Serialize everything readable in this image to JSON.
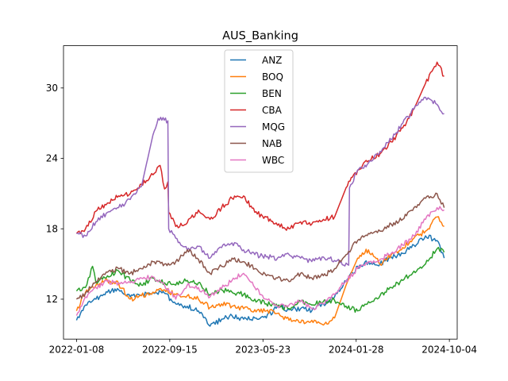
{
  "chart_data": {
    "type": "line",
    "title": "AUS_Banking",
    "xlabel": "",
    "ylabel": "",
    "x_range": [
      "2021-12-04",
      "2024-10-25"
    ],
    "ylim": [
      8.6,
      33.6
    ],
    "x_ticks": [
      "2022-01-08",
      "2022-09-15",
      "2023-05-23",
      "2024-01-28",
      "2024-10-04"
    ],
    "y_ticks": [
      12,
      18,
      24,
      30
    ],
    "grid": false,
    "legend_position": "top-center",
    "series": [
      {
        "name": "ANZ",
        "color": "#1f77b4",
        "points": [
          [
            "2022-01-08",
            10.2
          ],
          [
            "2022-02-01",
            11.5
          ],
          [
            "2022-03-01",
            12.0
          ],
          [
            "2022-04-01",
            12.6
          ],
          [
            "2022-05-01",
            12.8
          ],
          [
            "2022-06-01",
            12.2
          ],
          [
            "2022-07-01",
            12.3
          ],
          [
            "2022-08-01",
            12.6
          ],
          [
            "2022-09-01",
            12.5
          ],
          [
            "2022-10-01",
            11.6
          ],
          [
            "2022-11-01",
            11.4
          ],
          [
            "2022-12-01",
            11.0
          ],
          [
            "2023-01-01",
            9.7
          ],
          [
            "2023-02-01",
            10.3
          ],
          [
            "2023-03-01",
            10.6
          ],
          [
            "2023-04-01",
            10.3
          ],
          [
            "2023-05-01",
            10.4
          ],
          [
            "2023-06-01",
            10.4
          ],
          [
            "2023-07-01",
            11.4
          ],
          [
            "2023-08-01",
            11.1
          ],
          [
            "2023-09-01",
            11.2
          ],
          [
            "2023-10-01",
            11.0
          ],
          [
            "2023-11-01",
            11.6
          ],
          [
            "2023-12-01",
            12.2
          ],
          [
            "2024-01-01",
            13.5
          ],
          [
            "2024-02-01",
            14.8
          ],
          [
            "2024-03-01",
            15.2
          ],
          [
            "2024-04-01",
            15.0
          ],
          [
            "2024-05-01",
            15.6
          ],
          [
            "2024-06-01",
            15.9
          ],
          [
            "2024-07-01",
            16.6
          ],
          [
            "2024-08-01",
            17.4
          ],
          [
            "2024-09-01",
            17.0
          ],
          [
            "2024-09-20",
            15.5
          ]
        ]
      },
      {
        "name": "BOQ",
        "color": "#ff7f0e",
        "points": [
          [
            "2022-01-08",
            11.0
          ],
          [
            "2022-02-01",
            12.6
          ],
          [
            "2022-03-01",
            13.2
          ],
          [
            "2022-04-01",
            13.6
          ],
          [
            "2022-05-01",
            13.3
          ],
          [
            "2022-06-01",
            12.0
          ],
          [
            "2022-07-01",
            12.3
          ],
          [
            "2022-08-01",
            12.6
          ],
          [
            "2022-09-01",
            12.8
          ],
          [
            "2022-10-01",
            12.4
          ],
          [
            "2022-11-01",
            12.3
          ],
          [
            "2022-12-01",
            12.0
          ],
          [
            "2023-01-01",
            11.3
          ],
          [
            "2023-02-01",
            11.6
          ],
          [
            "2023-03-01",
            11.4
          ],
          [
            "2023-04-01",
            11.2
          ],
          [
            "2023-05-01",
            11.1
          ],
          [
            "2023-06-01",
            11.0
          ],
          [
            "2023-07-01",
            10.8
          ],
          [
            "2023-08-01",
            10.2
          ],
          [
            "2023-09-01",
            10.0
          ],
          [
            "2023-10-01",
            10.2
          ],
          [
            "2023-11-01",
            9.8
          ],
          [
            "2023-12-01",
            10.4
          ],
          [
            "2024-01-01",
            13.2
          ],
          [
            "2024-02-01",
            15.5
          ],
          [
            "2024-03-01",
            16.2
          ],
          [
            "2024-04-01",
            15.0
          ],
          [
            "2024-05-01",
            15.8
          ],
          [
            "2024-06-01",
            16.4
          ],
          [
            "2024-07-01",
            17.2
          ],
          [
            "2024-08-01",
            17.8
          ],
          [
            "2024-09-01",
            19.0
          ],
          [
            "2024-09-20",
            18.2
          ]
        ]
      },
      {
        "name": "BEN",
        "color": "#2ca02c",
        "points": [
          [
            "2022-01-08",
            12.7
          ],
          [
            "2022-02-01",
            13.0
          ],
          [
            "2022-02-20",
            14.8
          ],
          [
            "2022-03-01",
            13.4
          ],
          [
            "2022-04-01",
            14.0
          ],
          [
            "2022-05-01",
            14.4
          ],
          [
            "2022-06-01",
            13.6
          ],
          [
            "2022-07-01",
            13.2
          ],
          [
            "2022-08-01",
            13.8
          ],
          [
            "2022-09-01",
            13.4
          ],
          [
            "2022-10-01",
            13.2
          ],
          [
            "2022-11-01",
            13.6
          ],
          [
            "2022-12-01",
            13.4
          ],
          [
            "2023-01-01",
            12.4
          ],
          [
            "2023-02-01",
            12.8
          ],
          [
            "2023-03-01",
            12.6
          ],
          [
            "2023-04-01",
            12.4
          ],
          [
            "2023-05-01",
            12.0
          ],
          [
            "2023-06-01",
            11.6
          ],
          [
            "2023-07-01",
            11.4
          ],
          [
            "2023-08-01",
            11.2
          ],
          [
            "2023-09-01",
            11.8
          ],
          [
            "2023-10-01",
            11.5
          ],
          [
            "2023-11-01",
            11.8
          ],
          [
            "2023-12-01",
            11.9
          ],
          [
            "2024-01-01",
            11.4
          ],
          [
            "2024-02-01",
            11.0
          ],
          [
            "2024-03-01",
            11.8
          ],
          [
            "2024-04-01",
            12.3
          ],
          [
            "2024-05-01",
            13.0
          ],
          [
            "2024-06-01",
            13.6
          ],
          [
            "2024-07-01",
            14.4
          ],
          [
            "2024-08-01",
            15.0
          ],
          [
            "2024-09-01",
            16.3
          ],
          [
            "2024-09-20",
            16.0
          ]
        ]
      },
      {
        "name": "CBA",
        "color": "#d62728",
        "points": [
          [
            "2022-01-08",
            17.6
          ],
          [
            "2022-02-01",
            18.0
          ],
          [
            "2022-03-01",
            19.5
          ],
          [
            "2022-04-01",
            20.2
          ],
          [
            "2022-05-01",
            20.8
          ],
          [
            "2022-06-01",
            21.0
          ],
          [
            "2022-07-01",
            21.8
          ],
          [
            "2022-08-01",
            22.6
          ],
          [
            "2022-08-20",
            23.4
          ],
          [
            "2022-09-01",
            21.4
          ],
          [
            "2022-09-10",
            22.0
          ],
          [
            "2022-09-12",
            19.4
          ],
          [
            "2022-10-01",
            18.2
          ],
          [
            "2022-11-01",
            18.5
          ],
          [
            "2022-12-01",
            19.6
          ],
          [
            "2023-01-01",
            18.8
          ],
          [
            "2023-02-01",
            19.8
          ],
          [
            "2023-03-01",
            20.6
          ],
          [
            "2023-04-01",
            20.8
          ],
          [
            "2023-05-01",
            19.4
          ],
          [
            "2023-06-01",
            19.0
          ],
          [
            "2023-07-01",
            18.3
          ],
          [
            "2023-08-01",
            18.0
          ],
          [
            "2023-09-01",
            18.6
          ],
          [
            "2023-10-01",
            18.4
          ],
          [
            "2023-11-01",
            18.8
          ],
          [
            "2023-12-01",
            19.0
          ],
          [
            "2024-01-01",
            21.5
          ],
          [
            "2024-02-01",
            23.0
          ],
          [
            "2024-03-01",
            23.8
          ],
          [
            "2024-04-01",
            24.4
          ],
          [
            "2024-05-01",
            25.4
          ],
          [
            "2024-06-01",
            26.6
          ],
          [
            "2024-07-01",
            28.2
          ],
          [
            "2024-08-01",
            30.4
          ],
          [
            "2024-09-01",
            32.2
          ],
          [
            "2024-09-20",
            31.0
          ]
        ]
      },
      {
        "name": "MQG",
        "color": "#9467bd",
        "points": [
          [
            "2022-01-08",
            17.6
          ],
          [
            "2022-02-01",
            17.4
          ],
          [
            "2022-03-01",
            18.6
          ],
          [
            "2022-04-01",
            19.4
          ],
          [
            "2022-05-01",
            19.8
          ],
          [
            "2022-06-01",
            20.5
          ],
          [
            "2022-07-01",
            21.6
          ],
          [
            "2022-08-01",
            26.0
          ],
          [
            "2022-08-15",
            27.4
          ],
          [
            "2022-09-10",
            27.2
          ],
          [
            "2022-09-12",
            18.0
          ],
          [
            "2022-10-01",
            17.2
          ],
          [
            "2022-11-01",
            16.2
          ],
          [
            "2022-12-01",
            16.5
          ],
          [
            "2023-01-01",
            15.5
          ],
          [
            "2023-02-01",
            16.4
          ],
          [
            "2023-03-01",
            16.8
          ],
          [
            "2023-04-01",
            16.2
          ],
          [
            "2023-05-01",
            15.8
          ],
          [
            "2023-06-01",
            15.6
          ],
          [
            "2023-07-01",
            15.5
          ],
          [
            "2023-08-01",
            15.8
          ],
          [
            "2023-09-01",
            15.5
          ],
          [
            "2023-10-01",
            15.2
          ],
          [
            "2023-11-01",
            15.6
          ],
          [
            "2023-12-01",
            15.3
          ],
          [
            "2024-01-08",
            14.9
          ],
          [
            "2024-01-10",
            21.5
          ],
          [
            "2024-02-01",
            23.0
          ],
          [
            "2024-03-01",
            23.6
          ],
          [
            "2024-04-01",
            24.6
          ],
          [
            "2024-05-01",
            25.6
          ],
          [
            "2024-06-01",
            27.0
          ],
          [
            "2024-07-01",
            28.2
          ],
          [
            "2024-08-01",
            29.2
          ],
          [
            "2024-09-01",
            28.6
          ],
          [
            "2024-09-20",
            27.8
          ]
        ]
      },
      {
        "name": "NAB",
        "color": "#8c564b",
        "points": [
          [
            "2022-01-08",
            12.0
          ],
          [
            "2022-02-01",
            12.5
          ],
          [
            "2022-03-01",
            13.5
          ],
          [
            "2022-04-01",
            14.3
          ],
          [
            "2022-05-01",
            14.6
          ],
          [
            "2022-06-01",
            14.2
          ],
          [
            "2022-07-01",
            14.6
          ],
          [
            "2022-08-01",
            15.2
          ],
          [
            "2022-09-01",
            15.0
          ],
          [
            "2022-10-01",
            15.2
          ],
          [
            "2022-11-01",
            16.2
          ],
          [
            "2022-12-01",
            15.4
          ],
          [
            "2023-01-01",
            14.2
          ],
          [
            "2023-02-01",
            14.8
          ],
          [
            "2023-03-01",
            15.5
          ],
          [
            "2023-04-01",
            15.2
          ],
          [
            "2023-05-01",
            14.6
          ],
          [
            "2023-06-01",
            14.0
          ],
          [
            "2023-07-01",
            13.8
          ],
          [
            "2023-08-01",
            13.5
          ],
          [
            "2023-09-01",
            14.2
          ],
          [
            "2023-10-01",
            13.8
          ],
          [
            "2023-11-01",
            14.0
          ],
          [
            "2023-12-01",
            14.6
          ],
          [
            "2024-01-01",
            15.8
          ],
          [
            "2024-02-01",
            17.0
          ],
          [
            "2024-03-01",
            17.6
          ],
          [
            "2024-04-01",
            17.8
          ],
          [
            "2024-05-01",
            18.4
          ],
          [
            "2024-06-01",
            18.8
          ],
          [
            "2024-07-01",
            19.8
          ],
          [
            "2024-08-01",
            20.6
          ],
          [
            "2024-09-01",
            21.0
          ],
          [
            "2024-09-20",
            19.8
          ]
        ]
      },
      {
        "name": "WBC",
        "color": "#e377c2",
        "points": [
          [
            "2022-01-08",
            10.6
          ],
          [
            "2022-02-01",
            12.2
          ],
          [
            "2022-03-01",
            13.0
          ],
          [
            "2022-04-01",
            13.5
          ],
          [
            "2022-05-01",
            13.4
          ],
          [
            "2022-06-01",
            13.4
          ],
          [
            "2022-07-01",
            13.8
          ],
          [
            "2022-08-01",
            13.9
          ],
          [
            "2022-09-01",
            13.2
          ],
          [
            "2022-10-01",
            12.0
          ],
          [
            "2022-11-01",
            13.2
          ],
          [
            "2022-12-01",
            13.0
          ],
          [
            "2023-01-01",
            12.2
          ],
          [
            "2023-02-01",
            12.9
          ],
          [
            "2023-03-01",
            13.6
          ],
          [
            "2023-04-01",
            14.2
          ],
          [
            "2023-05-01",
            13.0
          ],
          [
            "2023-06-01",
            12.0
          ],
          [
            "2023-07-01",
            11.4
          ],
          [
            "2023-08-01",
            11.5
          ],
          [
            "2023-09-01",
            11.8
          ],
          [
            "2023-10-01",
            11.2
          ],
          [
            "2023-11-01",
            11.6
          ],
          [
            "2023-12-01",
            12.4
          ],
          [
            "2024-01-01",
            13.6
          ],
          [
            "2024-02-01",
            14.6
          ],
          [
            "2024-03-01",
            15.2
          ],
          [
            "2024-04-01",
            15.4
          ],
          [
            "2024-05-01",
            15.9
          ],
          [
            "2024-06-01",
            16.6
          ],
          [
            "2024-07-01",
            17.4
          ],
          [
            "2024-08-01",
            18.8
          ],
          [
            "2024-09-01",
            19.8
          ],
          [
            "2024-09-20",
            19.6
          ]
        ]
      }
    ]
  }
}
